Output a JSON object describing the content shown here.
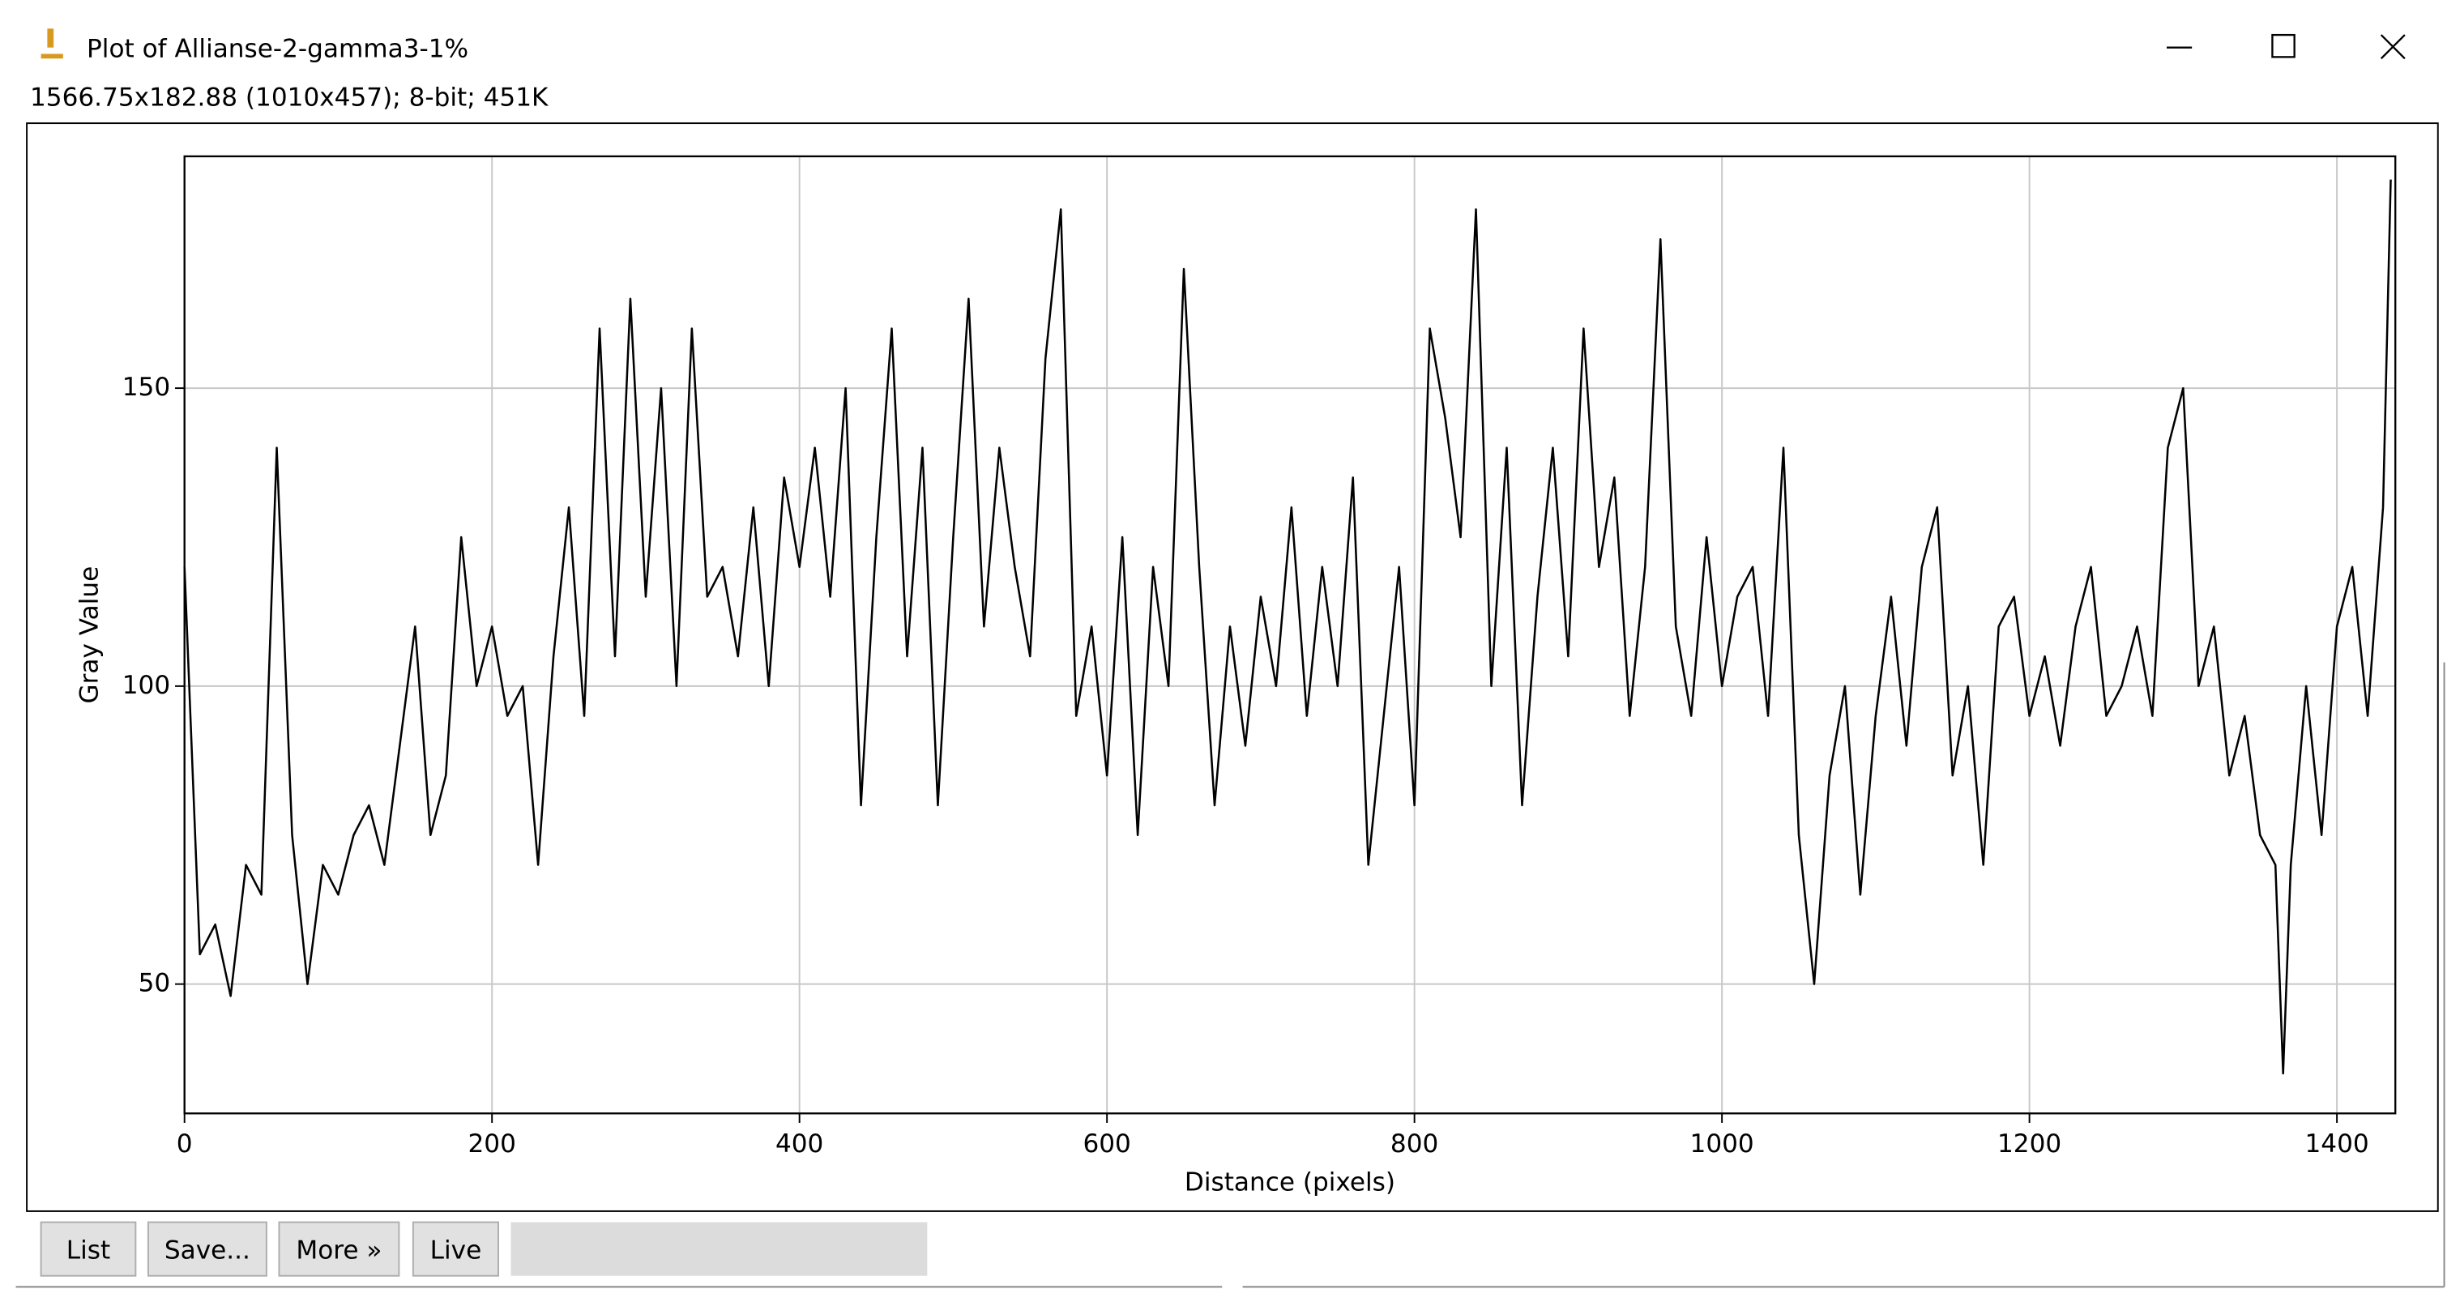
{
  "window": {
    "title": "Plot of Allianse-2-gamma3-1%",
    "info": "1566.75x182.88  (1010x457); 8-bit; 451K",
    "buttons": [
      "List",
      "Save...",
      "More »",
      "Live"
    ]
  },
  "chart_data": {
    "type": "line",
    "xlabel": "Distance (pixels)",
    "ylabel": "Gray Value",
    "xlim": [
      0,
      1438
    ],
    "ylim": [
      28.3,
      188.9
    ],
    "xticks": [
      0,
      200,
      400,
      600,
      800,
      1000,
      1200,
      1400
    ],
    "yticks": [
      50,
      100,
      150
    ],
    "grid": true,
    "series": [
      {
        "color": "#000000",
        "x": [
          0,
          10,
          20,
          30,
          40,
          50,
          60,
          70,
          80,
          90,
          100,
          110,
          120,
          130,
          140,
          150,
          160,
          170,
          180,
          190,
          200,
          210,
          220,
          230,
          240,
          250,
          260,
          270,
          280,
          290,
          300,
          310,
          320,
          330,
          340,
          350,
          360,
          370,
          380,
          390,
          400,
          410,
          420,
          430,
          440,
          450,
          460,
          470,
          480,
          490,
          500,
          510,
          520,
          530,
          540,
          550,
          560,
          570,
          580,
          590,
          600,
          610,
          620,
          630,
          640,
          650,
          660,
          670,
          680,
          690,
          700,
          710,
          720,
          730,
          740,
          750,
          760,
          770,
          780,
          790,
          800,
          810,
          820,
          830,
          840,
          850,
          860,
          870,
          880,
          890,
          900,
          910,
          920,
          930,
          940,
          950,
          960,
          970,
          980,
          990,
          1000,
          1010,
          1020,
          1030,
          1040,
          1050,
          1060,
          1070,
          1080,
          1090,
          1100,
          1110,
          1120,
          1130,
          1140,
          1150,
          1160,
          1170,
          1180,
          1190,
          1200,
          1210,
          1220,
          1230,
          1240,
          1250,
          1260,
          1270,
          1280,
          1290,
          1300,
          1310,
          1320,
          1330,
          1340,
          1350,
          1360,
          1365,
          1370,
          1380,
          1390,
          1400,
          1410,
          1420,
          1430,
          1435
        ],
        "values": [
          120,
          55,
          60,
          48,
          70,
          65,
          140,
          75,
          50,
          70,
          65,
          75,
          80,
          70,
          90,
          110,
          75,
          85,
          125,
          100,
          110,
          95,
          100,
          70,
          105,
          130,
          95,
          160,
          105,
          165,
          115,
          150,
          100,
          160,
          115,
          120,
          105,
          130,
          100,
          135,
          120,
          140,
          115,
          150,
          80,
          125,
          160,
          105,
          140,
          80,
          125,
          165,
          110,
          140,
          120,
          105,
          155,
          180,
          95,
          110,
          85,
          125,
          75,
          120,
          100,
          170,
          120,
          80,
          110,
          90,
          115,
          100,
          130,
          95,
          120,
          100,
          135,
          70,
          95,
          120,
          80,
          160,
          145,
          125,
          180,
          100,
          140,
          80,
          115,
          140,
          105,
          160,
          120,
          135,
          95,
          120,
          175,
          110,
          95,
          125,
          100,
          115,
          120,
          95,
          140,
          75,
          50,
          85,
          100,
          65,
          95,
          115,
          90,
          120,
          130,
          85,
          100,
          70,
          110,
          115,
          95,
          105,
          90,
          110,
          120,
          95,
          100,
          110,
          95,
          140,
          150,
          100,
          110,
          85,
          95,
          75,
          70,
          35,
          70,
          100,
          75,
          110,
          120,
          95,
          130,
          185
        ]
      }
    ]
  }
}
